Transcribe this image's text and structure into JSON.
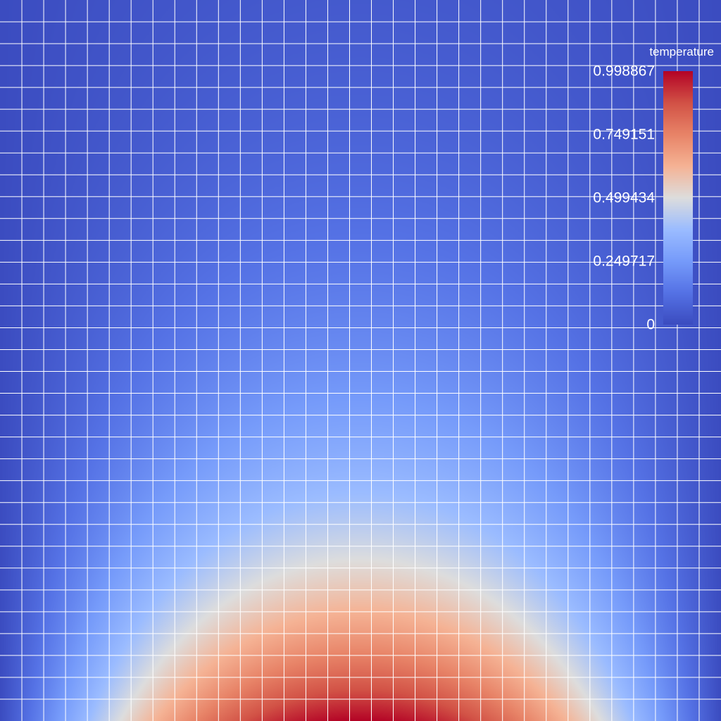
{
  "chart_data": {
    "type": "heatmap",
    "field_name": "temperature",
    "colormap": "coolwarm",
    "range": [
      0,
      0.998867
    ],
    "colorbar": {
      "title": "temperature",
      "ticks": [
        {
          "value": 0.998867,
          "label": "0.998867"
        },
        {
          "value": 0.749151,
          "label": "0.749151"
        },
        {
          "value": 0.499434,
          "label": "0.499434"
        },
        {
          "value": 0.249717,
          "label": "0.249717"
        },
        {
          "value": 0,
          "label": "0"
        }
      ]
    },
    "mesh": {
      "nx": 33,
      "ny": 33,
      "grid_lines": true,
      "grid_color": "#ffffff"
    },
    "description": "temperature peaks at bottom-center edge, decays toward top and side edges"
  },
  "colors": {
    "cold": "#3b4cc0",
    "neutral": "#dddddd",
    "hot": "#b40426"
  }
}
